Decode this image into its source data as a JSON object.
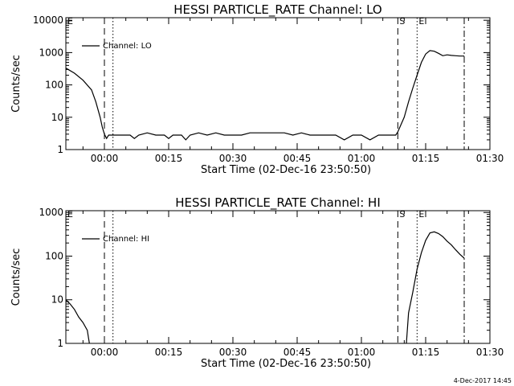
{
  "chart_data": [
    {
      "type": "line",
      "title": "HESSI PARTICLE_RATE Channel: LO",
      "xlabel": "Start Time (02-Dec-16 23:50:50)",
      "ylabel": "Counts/sec",
      "yscale": "log",
      "xlim": [
        -9,
        90
      ],
      "ylim": [
        1,
        12000
      ],
      "x_ticks": [
        {
          "value": 0,
          "label": "00:00"
        },
        {
          "value": 15,
          "label": "00:15"
        },
        {
          "value": 30,
          "label": "00:30"
        },
        {
          "value": 45,
          "label": "00:45"
        },
        {
          "value": 60,
          "label": "01:00"
        },
        {
          "value": 75,
          "label": "01:15"
        },
        {
          "value": 90,
          "label": "01:30"
        }
      ],
      "y_ticks": [
        {
          "value": 1,
          "label": "1"
        },
        {
          "value": 10,
          "label": "10"
        },
        {
          "value": 100,
          "label": "100"
        },
        {
          "value": 1000,
          "label": "1000"
        },
        {
          "value": 10000,
          "label": "10000"
        }
      ],
      "markers": [
        {
          "label": "E",
          "x": -9,
          "style": "solid"
        },
        {
          "label": "",
          "x": 0,
          "style": "dashed"
        },
        {
          "label": "",
          "x": 2,
          "style": "dotted"
        },
        {
          "label": "S",
          "x": 68.5,
          "style": "dashed"
        },
        {
          "label": "E",
          "x": 73,
          "style": "dotted"
        },
        {
          "label": "",
          "x": 84,
          "style": "dashdot"
        }
      ],
      "series": [
        {
          "name": "Channel: LO",
          "x": [
            -9,
            -7,
            -5,
            -3,
            -2,
            -1,
            -0.5,
            0,
            0.5,
            1,
            2,
            4,
            6,
            7,
            8,
            10,
            12,
            14,
            15,
            16,
            18,
            19,
            20,
            22,
            24,
            26,
            28,
            30,
            32,
            34,
            36,
            38,
            40,
            42,
            44,
            46,
            48,
            50,
            52,
            54,
            56,
            58,
            60,
            62,
            64,
            66,
            68,
            68.5,
            69,
            70,
            71,
            72,
            73,
            74,
            75,
            76,
            77,
            78,
            79,
            80,
            81,
            82,
            83,
            84
          ],
          "y": [
            330,
            230,
            140,
            70,
            30,
            10,
            5,
            3,
            2.2,
            2.8,
            2.8,
            2.8,
            2.8,
            2.2,
            2.8,
            3.3,
            2.8,
            2.8,
            2.2,
            2.8,
            2.8,
            2,
            2.8,
            3.3,
            2.8,
            3.3,
            2.8,
            2.8,
            2.8,
            3.3,
            3.3,
            3.3,
            3.3,
            3.3,
            2.8,
            3.3,
            2.8,
            2.8,
            2.8,
            2.8,
            2,
            2.8,
            2.8,
            2,
            2.8,
            2.8,
            2.8,
            3.5,
            5,
            10,
            30,
            80,
            200,
            500,
            900,
            1150,
            1100,
            950,
            800,
            850,
            820,
            800,
            780,
            780
          ]
        }
      ]
    },
    {
      "type": "line",
      "title": "HESSI PARTICLE_RATE Channel: HI",
      "xlabel": "Start Time (02-Dec-16 23:50:50)",
      "ylabel": "Counts/sec",
      "yscale": "log",
      "xlim": [
        -9,
        90
      ],
      "ylim": [
        1,
        1100
      ],
      "x_ticks": [
        {
          "value": 0,
          "label": "00:00"
        },
        {
          "value": 15,
          "label": "00:15"
        },
        {
          "value": 30,
          "label": "00:30"
        },
        {
          "value": 45,
          "label": "00:45"
        },
        {
          "value": 60,
          "label": "01:00"
        },
        {
          "value": 75,
          "label": "01:15"
        },
        {
          "value": 90,
          "label": "01:30"
        }
      ],
      "y_ticks": [
        {
          "value": 1,
          "label": "1"
        },
        {
          "value": 10,
          "label": "10"
        },
        {
          "value": 100,
          "label": "100"
        },
        {
          "value": 1000,
          "label": "1000"
        }
      ],
      "markers": [
        {
          "label": "E",
          "x": -9,
          "style": "solid"
        },
        {
          "label": "",
          "x": 0,
          "style": "dashed"
        },
        {
          "label": "",
          "x": 2,
          "style": "dotted"
        },
        {
          "label": "S",
          "x": 68.5,
          "style": "dashed"
        },
        {
          "label": "E",
          "x": 73,
          "style": "dotted"
        },
        {
          "label": "",
          "x": 84,
          "style": "dashdot"
        }
      ],
      "series": [
        {
          "name": "Channel: HI",
          "x": [
            -9,
            -8,
            -7,
            -6,
            -5,
            -4,
            -3.5
          ],
          "y": [
            10,
            8,
            6,
            4,
            3,
            2,
            1
          ]
        },
        {
          "name": "Channel: HI",
          "x": [
            70.5,
            71,
            72,
            73,
            74,
            75,
            76,
            77,
            78,
            79,
            80,
            81,
            82,
            83,
            84
          ],
          "y": [
            1,
            5,
            15,
            50,
            120,
            230,
            340,
            360,
            330,
            280,
            220,
            180,
            140,
            110,
            90
          ]
        }
      ]
    }
  ],
  "timestamp": "4-Dec-2017 14:45"
}
